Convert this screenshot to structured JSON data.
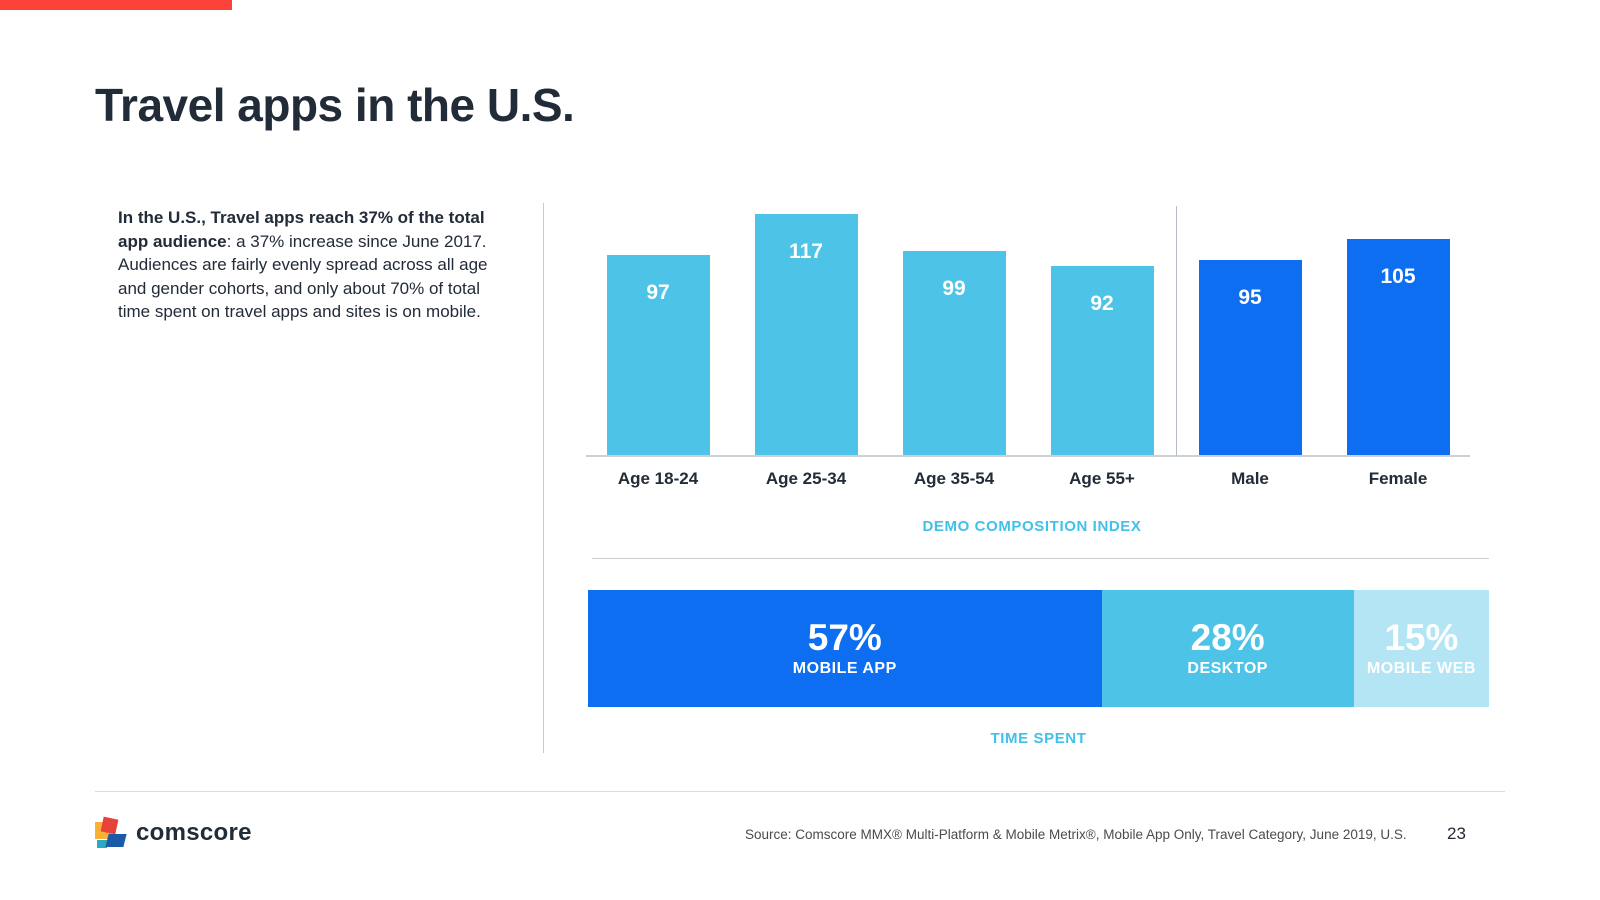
{
  "header": {
    "title": "Travel apps in the U.S."
  },
  "intro": {
    "bold": "In the U.S., Travel apps reach 37% of the total app audience",
    "rest": ": a 37% increase since June 2017. Audiences are fairly evenly spread across all age and gender cohorts, and only about 70% of total time spent on travel apps and sites is on mobile."
  },
  "chart_data": [
    {
      "type": "bar",
      "title": "DEMO COMPOSITION INDEX",
      "categories": [
        "Age 18-24",
        "Age 25-34",
        "Age 35-54",
        "Age 55+",
        "Male",
        "Female"
      ],
      "values": [
        97,
        117,
        99,
        92,
        95,
        105
      ],
      "groups": [
        "age",
        "age",
        "age",
        "age",
        "gender",
        "gender"
      ],
      "group_colors": {
        "age": "#4ec3e8",
        "gender": "#0d6ef2"
      },
      "ylim": [
        0,
        117
      ],
      "grid": false,
      "value_labels": true,
      "value_label_color": "#ffffff"
    },
    {
      "type": "stacked-bar",
      "title": "TIME SPENT",
      "segments": [
        {
          "value": 57,
          "label": "57%",
          "sublabel": "MOBILE APP",
          "color": "#0d6ef2"
        },
        {
          "value": 28,
          "label": "28%",
          "sublabel": "DESKTOP",
          "color": "#4ec3e8"
        },
        {
          "value": 15,
          "label": "15%",
          "sublabel": "MOBILE WEB",
          "color": "#b3e5f4"
        }
      ]
    }
  ],
  "footer": {
    "logo_text": "comscore",
    "source": "Source: Comscore MMX® Multi-Platform & Mobile Metrix®, Mobile App Only, Travel Category, June 2019, U.S.",
    "page_number": "23"
  },
  "colors": {
    "accent_red": "#fb423b",
    "dark_navy": "#222b38",
    "light_blue": "#4ec3e8",
    "bright_blue": "#0d6ef2",
    "pale_blue": "#b3e5f4",
    "caption_blue": "#41c1e8"
  }
}
